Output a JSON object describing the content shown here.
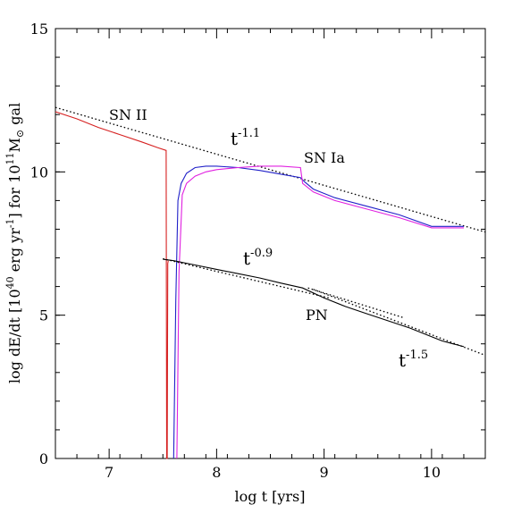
{
  "chart_data": {
    "type": "line",
    "title": "",
    "xlabel": "log t [yrs]",
    "ylabel": {
      "prefix": "log dE/dt [10",
      "exp1": "40",
      "mid": " erg yr",
      "exp2": "-1",
      "mid2": "] for 10",
      "exp3": "11",
      "after": "M",
      "sub": "⊙",
      "suffix": " gal"
    },
    "xlim": [
      6.5,
      10.5
    ],
    "ylim": [
      0,
      15
    ],
    "xticks": [
      7,
      8,
      9,
      10
    ],
    "yticks": [
      0,
      5,
      10,
      15
    ],
    "minor_x_step": 0.2,
    "minor_y_step": 1,
    "series": [
      {
        "name": "SN II",
        "color": "#d62020",
        "x": [
          6.5,
          6.7,
          6.9,
          7.1,
          7.3,
          7.45,
          7.53,
          7.535,
          7.54,
          7.545,
          7.55
        ],
        "y": [
          12.1,
          11.85,
          11.55,
          11.3,
          11.05,
          10.85,
          10.75,
          0,
          0,
          6.8,
          6.9
        ]
      },
      {
        "name": "SN Ia",
        "color": "#2020c8",
        "x": [
          7.6,
          7.62,
          7.64,
          7.67,
          7.72,
          7.8,
          7.9,
          8.0,
          8.2,
          8.4,
          8.6,
          8.78,
          8.82,
          8.9,
          9.1,
          9.4,
          9.7,
          10.0,
          10.3
        ],
        "y": [
          0,
          5.5,
          9.0,
          9.6,
          9.95,
          10.15,
          10.2,
          10.2,
          10.15,
          10.05,
          9.92,
          9.8,
          9.65,
          9.4,
          9.1,
          8.8,
          8.5,
          8.1,
          8.1
        ]
      },
      {
        "name": "",
        "color": "#e020e0",
        "x": [
          7.63,
          7.65,
          7.68,
          7.72,
          7.8,
          7.9,
          8.0,
          8.2,
          8.4,
          8.6,
          8.78,
          8.8,
          8.9,
          9.1,
          9.4,
          9.7,
          10.0,
          10.3
        ],
        "y": [
          0,
          6.5,
          9.2,
          9.6,
          9.85,
          10.0,
          10.08,
          10.15,
          10.2,
          10.2,
          10.15,
          9.6,
          9.3,
          9.0,
          8.7,
          8.4,
          8.05,
          8.05
        ]
      },
      {
        "name": "PN",
        "color": "#000000",
        "x": [
          7.5,
          7.6,
          7.8,
          8.0,
          8.2,
          8.4,
          8.6,
          8.8,
          9.0,
          9.2,
          9.4,
          9.6,
          9.8,
          10.0,
          10.1,
          10.2,
          10.3
        ],
        "y": [
          6.95,
          6.9,
          6.75,
          6.6,
          6.45,
          6.3,
          6.12,
          5.95,
          5.6,
          5.3,
          5.05,
          4.8,
          4.55,
          4.25,
          4.1,
          4.0,
          3.9
        ]
      }
    ],
    "fits": [
      {
        "label_base": "t",
        "label_exp": "-1.1",
        "x": [
          6.5,
          10.5
        ],
        "y": [
          12.25,
          7.9
        ]
      },
      {
        "label_base": "t",
        "label_exp": "-0.9",
        "x": [
          7.5,
          9.05
        ],
        "y": [
          6.97,
          5.6
        ]
      },
      {
        "label_base": "t",
        "label_exp": "-1.5",
        "x": [
          8.9,
          10.5
        ],
        "y": [
          5.9,
          3.6
        ]
      },
      {
        "label_base": "",
        "label_exp": "",
        "x": [
          8.85,
          9.75
        ],
        "y": [
          5.95,
          4.9
        ]
      }
    ]
  },
  "annotations": {
    "sn2": "SN II",
    "sn1a": "SN Ia",
    "pn": "PN",
    "t_base": "t",
    "exp_a": "-1.1",
    "exp_b": "-0.9",
    "exp_c": "-1.5"
  }
}
